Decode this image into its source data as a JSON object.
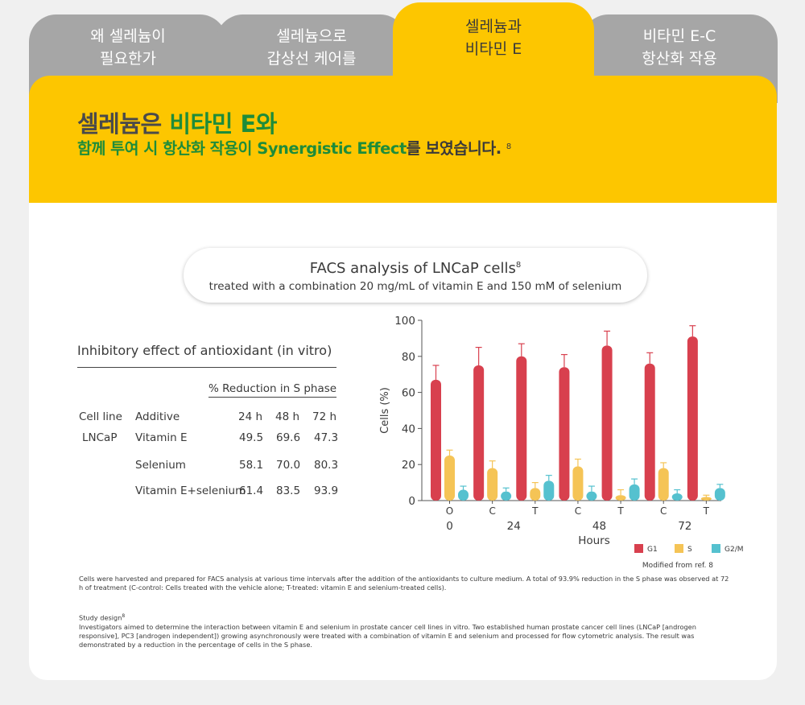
{
  "tabs": [
    {
      "line1": "왜 셀레늄이",
      "line2": "필요한가"
    },
    {
      "line1": "셀레늄으로",
      "line2": "갑상선 케어를"
    },
    {
      "line1": "셀레늄과",
      "line2": "비타민 E"
    },
    {
      "line1": "비타민 E-C",
      "line2": "항산화 작용"
    }
  ],
  "headline": {
    "line1_prefix": "셀레늄은 ",
    "line1_emphasis": "비타민 E와",
    "line2_emphasis": "함께 투여 시 항산화 작용이 Synergistic Effect",
    "line2_suffix": "를 보였습니다.",
    "ref": "8"
  },
  "panel": {
    "title": "FACS analysis of LNCaP cells",
    "title_ref": "8",
    "subtitle": "treated with a combination 20 mg/mL of vitamin E and 150 mM of selenium"
  },
  "table": {
    "title": "Inhibitory effect of antioxidant (in vitro)",
    "group_header": "% Reduction in S phase",
    "headers": [
      "Cell line",
      "Additive",
      "24 h",
      "48 h",
      "72 h"
    ],
    "rows": [
      {
        "cell": "LNCaP",
        "additive": "Vitamin E",
        "v24": "49.5",
        "v48": "69.6",
        "v72": "47.3"
      },
      {
        "cell": "",
        "additive": "Selenium",
        "v24": "58.1",
        "v48": "70.0",
        "v72": "80.3"
      },
      {
        "cell": "",
        "additive": "Vitamin E+selenium",
        "v24": "61.4",
        "v48": "83.5",
        "v72": "93.9"
      }
    ]
  },
  "chart_data": {
    "type": "bar",
    "categories": [
      "O",
      "C",
      "T",
      "C",
      "T",
      "C",
      "T"
    ],
    "hour_labels": [
      "0",
      "24",
      "48",
      "72"
    ],
    "xlabel": "Hours",
    "ylabel": "Cells (%)",
    "ylim": [
      0,
      100
    ],
    "yticks": [
      "0",
      "20",
      "40",
      "60",
      "80",
      "100"
    ],
    "series": [
      {
        "name": "G1",
        "color": "#d8404e",
        "values": [
          67,
          75,
          80,
          74,
          86,
          76,
          91
        ],
        "errors": [
          8,
          10,
          7,
          7,
          8,
          6,
          6
        ]
      },
      {
        "name": "S",
        "color": "#f5c456",
        "values": [
          25,
          18,
          7,
          19,
          3,
          18,
          2
        ],
        "errors": [
          3,
          4,
          3,
          4,
          3,
          3,
          1
        ]
      },
      {
        "name": "G2/M",
        "color": "#55c1cf",
        "values": [
          6,
          5,
          11,
          5,
          9,
          4,
          7
        ],
        "errors": [
          2,
          2,
          3,
          3,
          3,
          2,
          2
        ]
      }
    ],
    "legend_position": "bottom-right",
    "source_note": "Modified from ref. 8"
  },
  "footnotes": {
    "description": "Cells were harvested and prepared for FACS analysis at various time intervals after the addition of the antioxidants to culture medium. A total of 93.9% reduction in the S phase was observed at 72 h of treatment (C-control: Cells treated with the vehicle alone; T-treated: vitamin E and selenium-treated cells).",
    "design_title": "Study design",
    "design_ref": "8",
    "design_text": "Investigators aimed to determine the interaction between vitamin E and selenium in prostate cancer cell lines in vitro. Two established human prostate cancer cell lines (LNCaP [androgen responsive], PC3 [androgen independent]) growing asynchronously were treated with a combination of vitamin E and selenium and processed for flow cytometric analysis. The result was demonstrated by a reduction in the percentage of cells in the S phase."
  }
}
